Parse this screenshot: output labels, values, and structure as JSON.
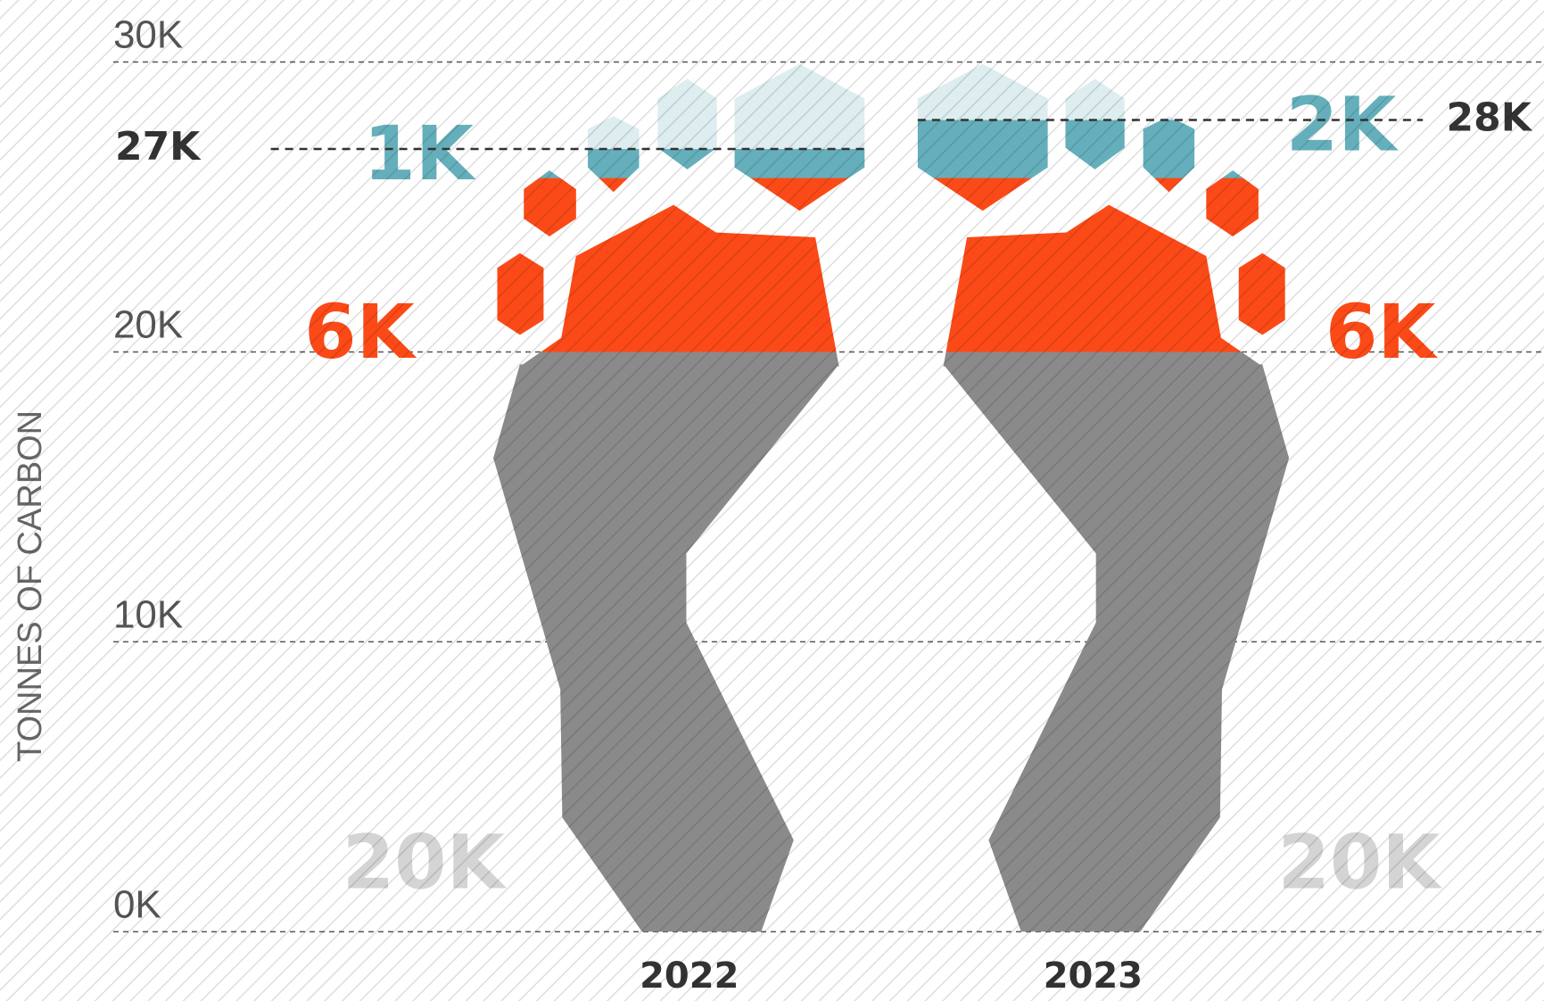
{
  "chart_data": {
    "type": "footprint-stack",
    "y_axis_label": "TONNES OF CARBON",
    "categories": [
      "2022",
      "2023"
    ],
    "series": [
      {
        "color": "#8a8a8a",
        "values": [
          20000,
          20000
        ],
        "value_labels": [
          "20K",
          "20K"
        ]
      },
      {
        "color": "#fb4a17",
        "values": [
          6000,
          6000
        ],
        "value_labels": [
          "6K",
          "6K"
        ]
      },
      {
        "color": "#64afbb",
        "values": [
          1000,
          2000
        ],
        "value_labels": [
          "1K",
          "2K"
        ]
      }
    ],
    "totals": [
      27000,
      28000
    ],
    "total_labels": [
      "27K",
      "28K"
    ],
    "ylim": [
      0,
      30000
    ],
    "yticks": [
      {
        "value": 0,
        "label": "0K"
      },
      {
        "value": 10000,
        "label": "10K"
      },
      {
        "value": 20000,
        "label": "20K"
      },
      {
        "value": 30000,
        "label": "30K"
      }
    ],
    "grid": true
  }
}
